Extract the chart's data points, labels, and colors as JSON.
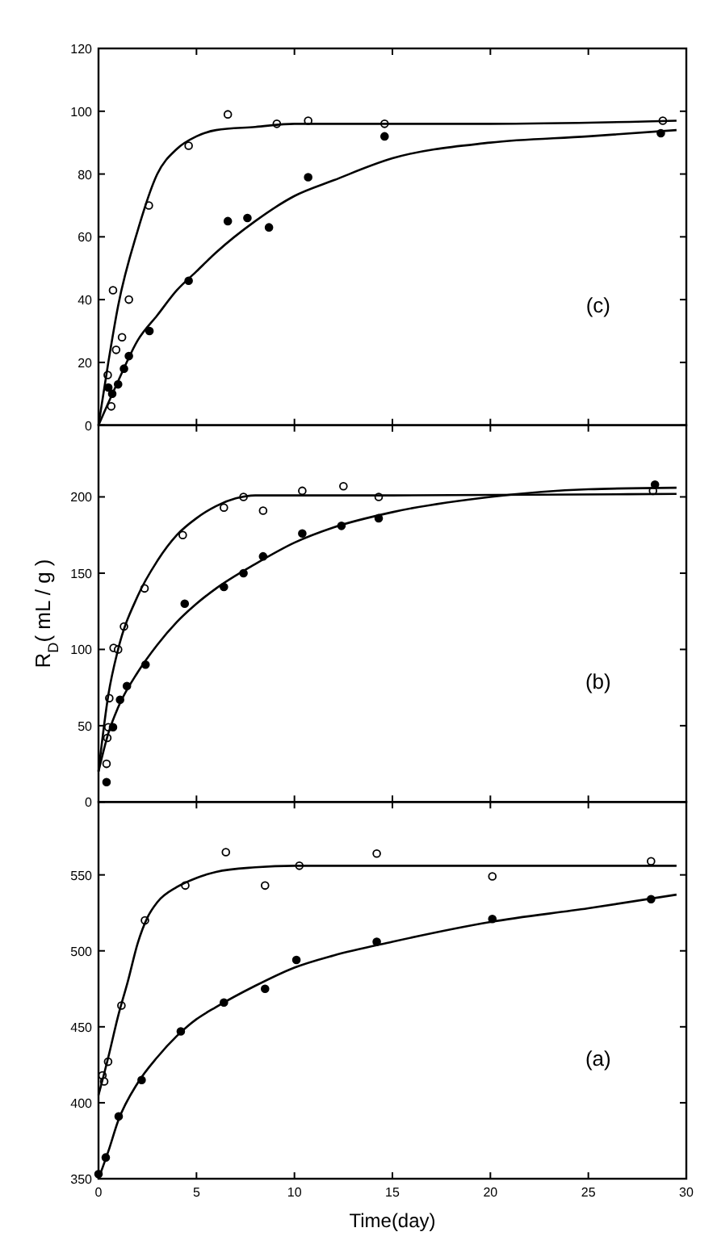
{
  "chart_data": [
    {
      "type": "scatter",
      "xlim": [
        0,
        30
      ],
      "xticks": [
        0,
        5,
        10,
        15,
        20,
        25,
        30
      ],
      "ylim": [
        0,
        120
      ],
      "yticks": [
        0,
        20,
        40,
        60,
        80,
        100,
        120
      ],
      "tick_labels": "y",
      "annotations": [
        "(c)"
      ],
      "series": [
        {
          "marker": "circle",
          "color": "#ffffff",
          "x": [
            0.47,
            0.65,
            0.74,
            0.9,
            1.2,
            1.55,
            2.57,
            4.6,
            6.6,
            9.1,
            10.7,
            14.6,
            28.8
          ],
          "values": [
            16,
            6,
            43,
            24,
            28,
            40,
            70,
            89,
            99,
            96,
            97,
            96,
            97
          ]
        },
        {
          "marker": "circle",
          "color": "#000000",
          "x": [
            0.5,
            0.7,
            1.0,
            1.3,
            1.55,
            2.6,
            4.6,
            6.6,
            7.6,
            8.7,
            10.7,
            14.6,
            28.7
          ],
          "values": [
            12,
            10,
            13,
            18,
            22,
            30,
            46,
            65,
            66,
            63,
            79,
            92,
            93
          ]
        },
        {
          "type": "line",
          "color": "#000000",
          "x": [
            0,
            0.5,
            1,
            2,
            3,
            4,
            5,
            6,
            8,
            10,
            20,
            29.5
          ],
          "values": [
            0,
            20,
            38,
            62,
            80,
            88,
            92,
            94,
            95,
            96,
            96,
            97
          ]
        },
        {
          "type": "line",
          "color": "#000000",
          "x": [
            0,
            1,
            2,
            3,
            4,
            5,
            6,
            8,
            10,
            12,
            15,
            20,
            25,
            29.5
          ],
          "values": [
            0,
            14,
            27,
            35,
            43,
            49,
            55,
            65,
            73,
            78,
            85,
            90,
            92,
            94
          ]
        }
      ]
    },
    {
      "type": "scatter",
      "xlim": [
        0,
        30
      ],
      "xticks": [
        0,
        5,
        10,
        15,
        20,
        25,
        30
      ],
      "ylim": [
        0,
        247
      ],
      "yticks": [
        0,
        50,
        100,
        150,
        200
      ],
      "tick_labels": "y",
      "ylabel": "R$_{D}$( mL / g )",
      "annotations": [
        "(b)"
      ],
      "series": [
        {
          "marker": "circle",
          "color": "#ffffff",
          "x": [
            0.41,
            0.45,
            0.5,
            0.55,
            0.77,
            1.0,
            1.3,
            2.35,
            4.3,
            6.4,
            7.4,
            8.4,
            10.4,
            12.5,
            14.3,
            28.3
          ],
          "values": [
            25,
            42,
            49,
            68,
            101,
            100,
            115,
            140,
            175,
            193,
            200,
            191,
            204,
            207,
            200,
            204
          ]
        },
        {
          "marker": "circle",
          "color": "#000000",
          "x": [
            0.41,
            0.74,
            1.1,
            1.45,
            2.4,
            4.4,
            6.4,
            7.4,
            8.4,
            10.4,
            12.4,
            14.3,
            28.4
          ],
          "values": [
            13,
            49,
            67,
            76,
            90,
            130,
            141,
            150,
            161,
            176,
            181,
            186,
            208
          ]
        },
        {
          "type": "line",
          "color": "#000000",
          "x": [
            0,
            0.5,
            1,
            2,
            3,
            4,
            5,
            6,
            7,
            8,
            15,
            29.5
          ],
          "values": [
            20,
            70,
            100,
            135,
            158,
            175,
            186,
            194,
            199,
            201,
            201,
            202
          ]
        },
        {
          "type": "line",
          "color": "#000000",
          "x": [
            0,
            0.5,
            1,
            2,
            3,
            4,
            5,
            6,
            8,
            10,
            12,
            15,
            20,
            25,
            29.5
          ],
          "values": [
            20,
            45,
            62,
            85,
            103,
            118,
            130,
            140,
            156,
            170,
            180,
            190,
            200,
            205,
            206
          ]
        }
      ]
    },
    {
      "type": "scatter",
      "xlim": [
        0,
        30
      ],
      "xticks": [
        0,
        5,
        10,
        15,
        20,
        25,
        30
      ],
      "ylim": [
        350,
        598
      ],
      "yticks": [
        350,
        400,
        450,
        500,
        550
      ],
      "xlabel": "Time(day)",
      "annotations": [
        "(a)"
      ],
      "series": [
        {
          "marker": "circle",
          "color": "#ffffff",
          "x": [
            0.2,
            0.29,
            0.49,
            1.17,
            2.37,
            4.43,
            6.5,
            8.5,
            10.25,
            14.2,
            20.1,
            28.2
          ],
          "values": [
            418,
            414,
            427,
            464,
            520,
            543,
            565,
            543,
            556,
            564,
            549,
            559
          ]
        },
        {
          "marker": "circle",
          "color": "#000000",
          "x": [
            0,
            0.37,
            1.03,
            2.2,
            4.2,
            6.4,
            8.5,
            10.1,
            14.2,
            20.1,
            28.2
          ],
          "values": [
            353,
            364,
            391,
            415,
            447,
            466,
            475,
            494,
            506,
            521,
            534
          ]
        },
        {
          "type": "line",
          "color": "#000000",
          "x": [
            0,
            0.5,
            1,
            1.5,
            2,
            2.5,
            3,
            4,
            5,
            6,
            8,
            10,
            29.5
          ],
          "values": [
            405,
            430,
            457,
            480,
            505,
            522,
            532,
            542,
            548,
            552,
            555,
            556,
            556
          ]
        },
        {
          "type": "line",
          "color": "#000000",
          "x": [
            0,
            0.5,
            1,
            2,
            3,
            4,
            5,
            6,
            8,
            10,
            12,
            15,
            20,
            25,
            29.5
          ],
          "values": [
            350,
            368,
            388,
            413,
            430,
            444,
            455,
            463,
            477,
            489,
            497,
            506,
            519,
            528,
            537
          ]
        }
      ]
    }
  ]
}
